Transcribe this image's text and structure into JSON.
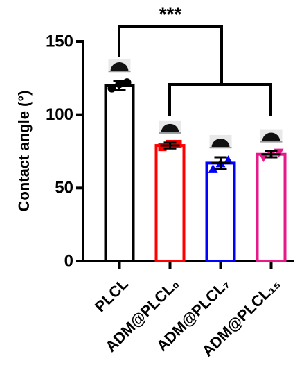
{
  "chart_data": {
    "type": "bar",
    "y_label": "Contact angle (°)",
    "annotation": "***",
    "categories": [
      "PLCL",
      "ADM@PLCL₀",
      "ADM@PLCL₇",
      "ADM@PLCL₁₅"
    ],
    "values": [
      120,
      79,
      67,
      73
    ],
    "errors": [
      3,
      2,
      4,
      2
    ],
    "colors": [
      "#000000",
      "#ff0000",
      "#0000ff",
      "#e6198a"
    ],
    "markers": [
      "circle",
      "square",
      "triangle-up",
      "triangle-down"
    ],
    "points": [
      [
        118,
        121,
        122
      ],
      [
        78,
        80,
        80
      ],
      [
        63,
        67,
        69
      ],
      [
        71,
        73,
        74
      ]
    ],
    "ylim": [
      0,
      150
    ],
    "yticks": [
      0,
      50,
      100,
      150
    ]
  }
}
